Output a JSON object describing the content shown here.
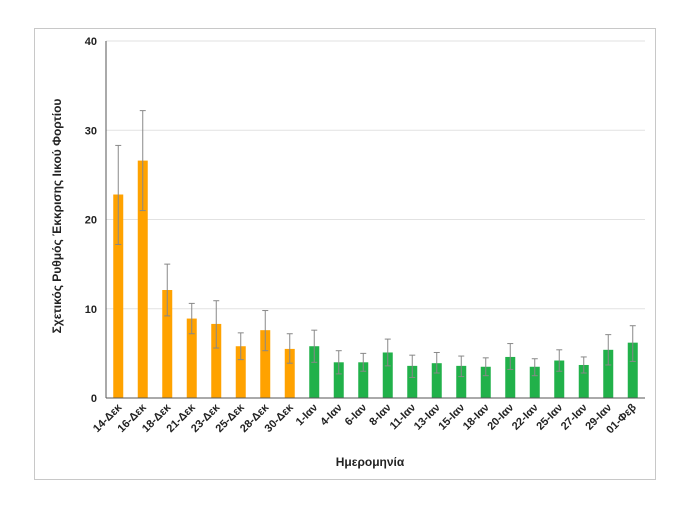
{
  "chart_data": {
    "type": "bar",
    "xlabel": "Ημερομηνία",
    "ylabel": "Σχετικός Ρυθμός Έκκρισης Ιικού Φορτίου",
    "ylim": [
      0,
      40
    ],
    "yticks": [
      0,
      10,
      20,
      30,
      40
    ],
    "grid": true,
    "legend": "none",
    "colors": {
      "group1": "#ffa200",
      "group2": "#21b14a",
      "error_bar": "#888888"
    },
    "categories": [
      "14-Δεκ",
      "16-Δεκ",
      "18-Δεκ",
      "21-Δεκ",
      "23-Δεκ",
      "25-Δεκ",
      "28-Δεκ",
      "30-Δεκ",
      "1-Ιαν",
      "4-Ιαν",
      "6-Ιαν",
      "8-Ιαν",
      "11-Ιαν",
      "13-Ιαν",
      "15-Ιαν",
      "18-Ιαν",
      "20-Ιαν",
      "22-Ιαν",
      "25-Ιαν",
      "27-Ιαν",
      "29-Ιαν",
      "01-Φεβ"
    ],
    "values": [
      22.8,
      26.6,
      12.1,
      8.9,
      8.3,
      5.8,
      7.6,
      5.5,
      5.8,
      4.0,
      4.0,
      5.1,
      3.6,
      3.9,
      3.6,
      3.5,
      4.6,
      3.5,
      4.2,
      3.7,
      5.4,
      6.2
    ],
    "error_low": [
      17.2,
      21.0,
      9.2,
      7.2,
      5.6,
      4.3,
      5.3,
      3.9,
      4.0,
      2.7,
      3.0,
      3.6,
      2.3,
      2.8,
      2.4,
      2.5,
      3.2,
      2.5,
      3.0,
      2.8,
      3.7,
      4.1
    ],
    "error_high": [
      28.3,
      32.2,
      15.0,
      10.6,
      10.9,
      7.3,
      9.8,
      7.2,
      7.6,
      5.3,
      5.0,
      6.6,
      4.8,
      5.1,
      4.7,
      4.5,
      6.1,
      4.4,
      5.4,
      4.6,
      7.1,
      8.1
    ],
    "group": [
      "orange",
      "orange",
      "orange",
      "orange",
      "orange",
      "orange",
      "orange",
      "orange",
      "green",
      "green",
      "green",
      "green",
      "green",
      "green",
      "green",
      "green",
      "green",
      "green",
      "green",
      "green",
      "green",
      "green"
    ]
  }
}
